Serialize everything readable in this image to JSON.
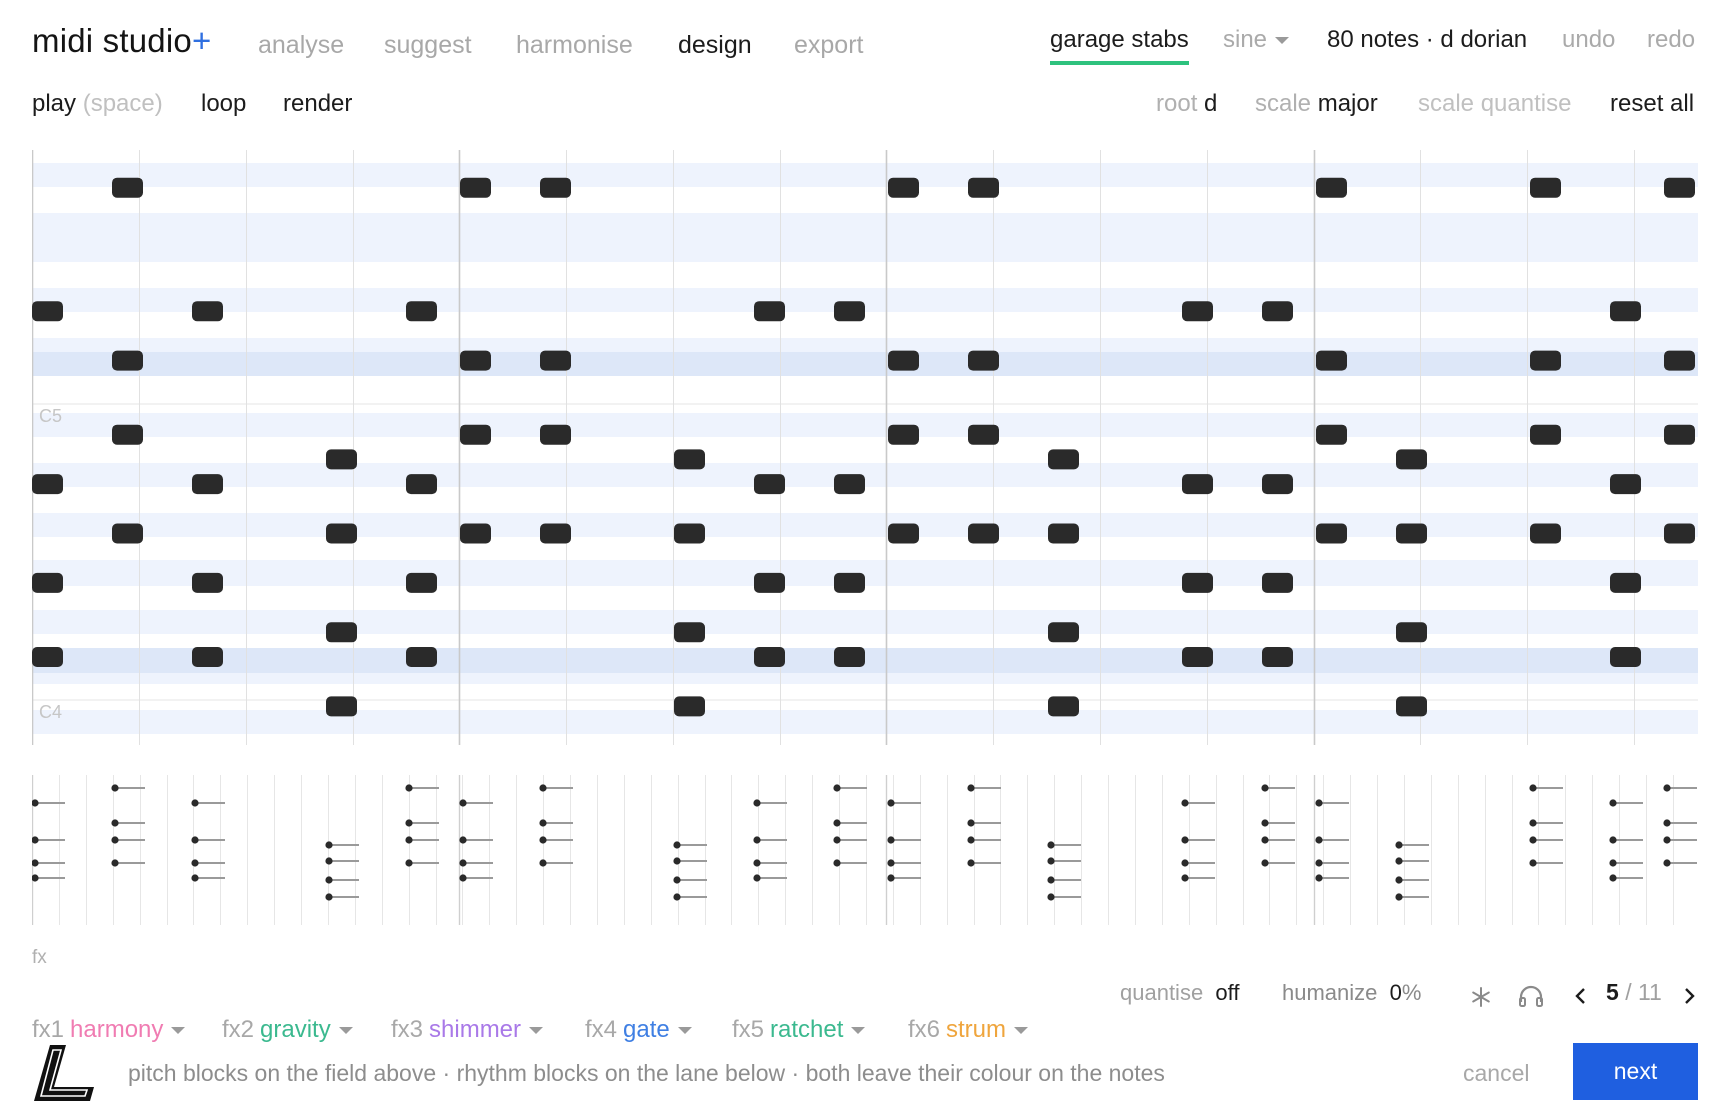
{
  "app": {
    "name": "midi studio",
    "plus": "+"
  },
  "nav": {
    "items": [
      "analyse",
      "suggest",
      "harmonise",
      "design",
      "export"
    ],
    "active": "design"
  },
  "topbar": {
    "preset": "garage stabs",
    "wave": "sine",
    "info_count": "80 notes",
    "info_sep": "·",
    "info_key": "d dorian",
    "undo": "undo",
    "redo": "redo"
  },
  "transport": {
    "play": "play",
    "play_hint": "(space)",
    "loop": "loop",
    "render": "render",
    "root_label": "root",
    "root_value": "d",
    "scale_label": "scale",
    "scale_value": "major",
    "scale_quantise": "scale quantise",
    "reset_all": "reset all"
  },
  "roll": {
    "octave_labels": [
      "C5",
      "C4"
    ],
    "colors": {
      "note": "#2a2a2a",
      "lane_light": "#eef3fd",
      "lane_strong": "#dde7f8",
      "grid": "#e1e1e1",
      "bar": "#c9c9c9"
    }
  },
  "fx": {
    "section_label": "fx",
    "items": [
      {
        "slot": "fx1",
        "name": "harmony",
        "color": "#f07cb2"
      },
      {
        "slot": "fx2",
        "name": "gravity",
        "color": "#3bb98f"
      },
      {
        "slot": "fx3",
        "name": "shimmer",
        "color": "#a979e8"
      },
      {
        "slot": "fx4",
        "name": "gate",
        "color": "#3f7fe3"
      },
      {
        "slot": "fx5",
        "name": "ratchet",
        "color": "#3bb98f"
      },
      {
        "slot": "fx6",
        "name": "strum",
        "color": "#efa53d"
      }
    ]
  },
  "controls": {
    "quantise_label": "quantise",
    "quantise_value": "off",
    "humanize_label": "humanize",
    "humanize_value": "0",
    "humanize_unit": "%",
    "page_current": "5",
    "page_sep": "/",
    "page_total": "11"
  },
  "footer": {
    "hint": "pitch blocks on the field above · rhythm blocks on the lane below · both leave their colour on the notes",
    "cancel": "cancel",
    "next": "next"
  }
}
